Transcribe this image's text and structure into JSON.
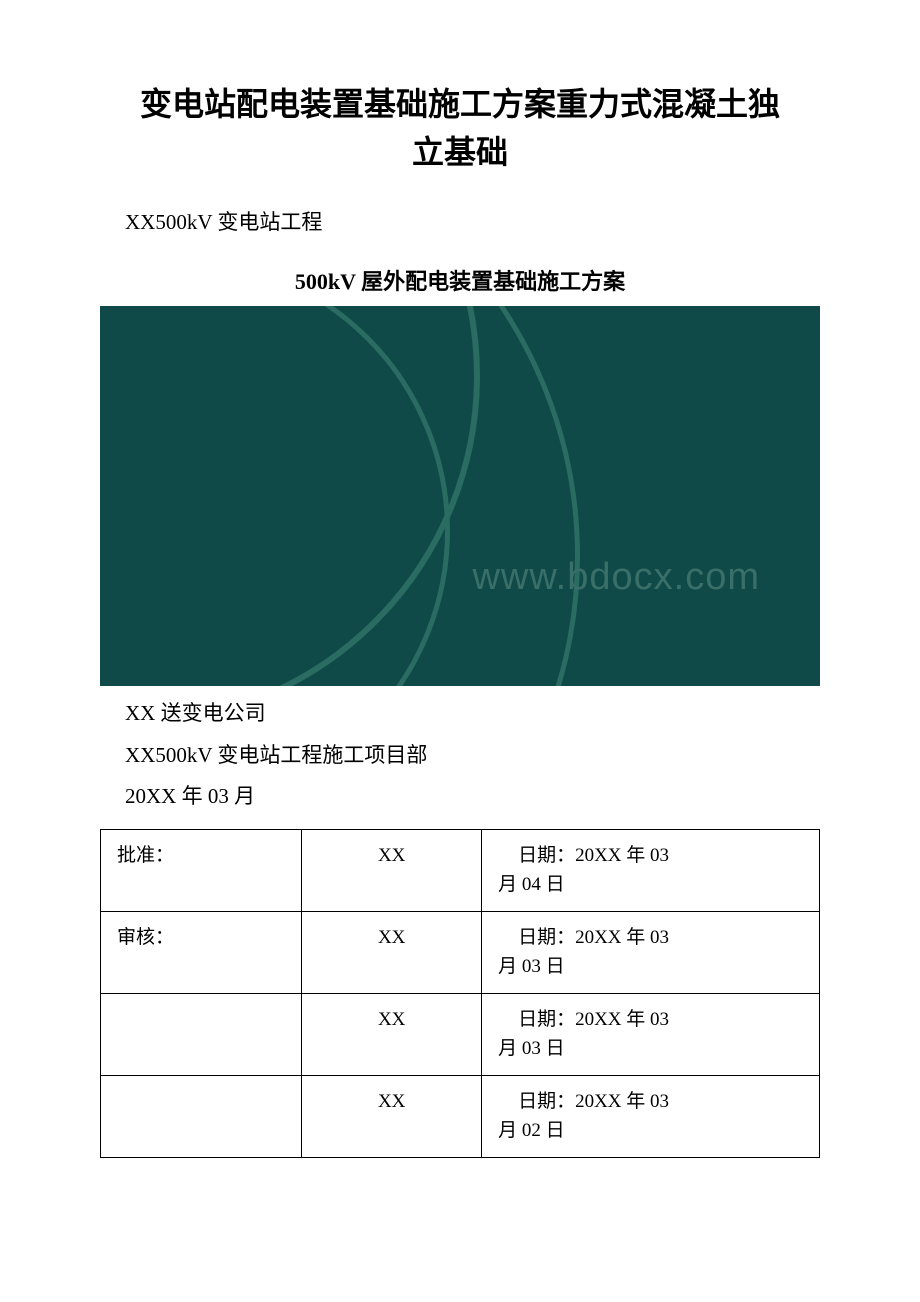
{
  "title": {
    "line1": "变电站配电装置基础施工方案重力式混凝土独",
    "line2": "立基础"
  },
  "project_name": "XX500kV 变电站工程",
  "section_heading": "500kV 屋外配电装置基础施工方案",
  "banner": {
    "background_color": "#0f4a48",
    "arc_color": "#2a6b62",
    "watermark_text": "www.bdocx.com",
    "watermark_color": "#3a6e68"
  },
  "body_lines": [
    "XX 送变电公司",
    "XX500kV 变电站工程施工项目部",
    "20XX 年 03 月"
  ],
  "table": {
    "border_color": "#000000",
    "font_size": 19,
    "rows": [
      {
        "role": "批准：",
        "name": "XX",
        "date_line1": "日期：20XX 年 03",
        "date_line2": "月 04 日"
      },
      {
        "role": "审核：",
        "name": "XX",
        "date_line1": "日期：20XX 年 03",
        "date_line2": "月 03 日"
      },
      {
        "role": "",
        "name": "XX",
        "date_line1": "日期：20XX 年 03",
        "date_line2": "月 03 日"
      },
      {
        "role": "",
        "name": "XX",
        "date_line1": "日期：20XX 年 03",
        "date_line2": "月 02 日"
      }
    ]
  }
}
